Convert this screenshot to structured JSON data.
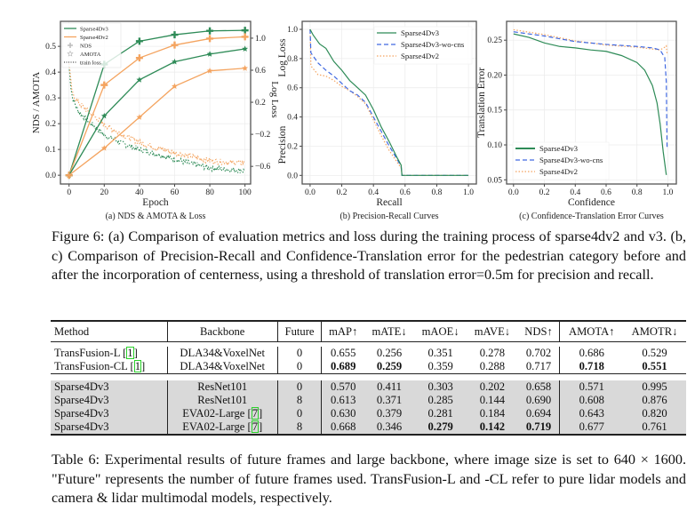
{
  "colors": {
    "v3": "#2e8b57",
    "v2": "#f4a460",
    "wocns": "#4169e1",
    "grid": "#e6e6e6"
  },
  "chart_data": [
    {
      "type": "line",
      "caption": "(a) NDS & AMOTA & Loss",
      "xlabel": "Epoch",
      "ylabel": "NDS / AMOTA",
      "y2label": "Log Loss",
      "xlim": [
        -4.9,
        103.2
      ],
      "ylim": [
        -0.034,
        0.597
      ],
      "y2lim": [
        -0.82,
        1.21
      ],
      "xticks": [
        0,
        20,
        40,
        60,
        80,
        100
      ],
      "yticks": [
        0.0,
        0.1,
        0.2,
        0.3,
        0.4,
        0.5
      ],
      "y2ticks": [
        -0.6,
        -0.2,
        0.2,
        0.6,
        1.0
      ],
      "grid": true,
      "legend": "top-left",
      "legend_entries": [
        "Sparse4Dv3",
        "Sparse4Dv2",
        "NDS",
        "AMOTA",
        "train loss"
      ],
      "x": [
        0,
        20,
        40,
        60,
        80,
        100
      ],
      "series": [
        {
          "name": "Sparse4Dv3",
          "metric": "NDS",
          "color": "v3",
          "marker": "plus",
          "values": [
            0,
            0.43,
            0.52,
            0.545,
            0.56,
            0.562
          ]
        },
        {
          "name": "Sparse4Dv2",
          "metric": "NDS",
          "color": "v2",
          "marker": "plus",
          "values": [
            0,
            0.35,
            0.455,
            0.505,
            0.53,
            0.537
          ]
        },
        {
          "name": "Sparse4Dv3",
          "metric": "AMOTA",
          "color": "v3",
          "marker": "star",
          "values": [
            0,
            0.23,
            0.37,
            0.44,
            0.47,
            0.49
          ]
        },
        {
          "name": "Sparse4Dv2",
          "metric": "AMOTA",
          "color": "v2",
          "marker": "star",
          "values": [
            0,
            0.105,
            0.225,
            0.345,
            0.405,
            0.415
          ]
        }
      ],
      "loss_x": [
        0,
        1,
        2,
        5,
        10,
        20,
        30,
        40,
        50,
        60,
        70,
        80,
        90,
        100
      ],
      "loss": [
        {
          "name": "Sparse4Dv3",
          "color": "v3",
          "values": [
            0.65,
            0.4,
            0.25,
            0.1,
            -0.02,
            -0.21,
            -0.31,
            -0.39,
            -0.45,
            -0.51,
            -0.57,
            -0.62,
            -0.64,
            -0.655
          ]
        },
        {
          "name": "Sparse4Dv2",
          "color": "v2",
          "values": [
            0.7,
            0.45,
            0.3,
            0.2,
            0.1,
            -0.08,
            -0.2,
            -0.3,
            -0.37,
            -0.43,
            -0.48,
            -0.53,
            -0.55,
            -0.555
          ]
        }
      ]
    },
    {
      "type": "line",
      "caption": "(b) Precision-Recall Curves",
      "xlabel": "Recall",
      "ylabel": "Log Loss",
      "ylabel2": "Precision",
      "xlim": [
        -0.05,
        1.05
      ],
      "ylim": [
        -0.059,
        1.055
      ],
      "xticks": [
        0.0,
        0.2,
        0.4,
        0.6,
        0.8,
        1.0
      ],
      "yticks": [
        0.0,
        0.2,
        0.4,
        0.6,
        0.8,
        1.0
      ],
      "grid": true,
      "legend": "top-right",
      "series": [
        {
          "name": "Sparse4Dv3",
          "color": "v3",
          "style": "solid",
          "points": [
            [
              0,
              1.0
            ],
            [
              0.02,
              0.96
            ],
            [
              0.06,
              0.9
            ],
            [
              0.1,
              0.87
            ],
            [
              0.15,
              0.78
            ],
            [
              0.2,
              0.72
            ],
            [
              0.25,
              0.65
            ],
            [
              0.3,
              0.6
            ],
            [
              0.35,
              0.55
            ],
            [
              0.4,
              0.45
            ],
            [
              0.45,
              0.33
            ],
            [
              0.5,
              0.23
            ],
            [
              0.55,
              0.12
            ],
            [
              0.575,
              0.07
            ],
            [
              0.58,
              0.0
            ],
            [
              1.0,
              0.0
            ]
          ]
        },
        {
          "name": "Sparse4Dv3-wo-cns",
          "color": "wocns",
          "style": "dashed",
          "points": [
            [
              0,
              1.0
            ],
            [
              0.005,
              0.84
            ],
            [
              0.05,
              0.77
            ],
            [
              0.1,
              0.72
            ],
            [
              0.15,
              0.68
            ],
            [
              0.2,
              0.63
            ],
            [
              0.25,
              0.58
            ],
            [
              0.3,
              0.55
            ],
            [
              0.35,
              0.5
            ],
            [
              0.4,
              0.4
            ],
            [
              0.45,
              0.3
            ],
            [
              0.5,
              0.2
            ],
            [
              0.55,
              0.11
            ],
            [
              0.575,
              0.06
            ],
            [
              0.58,
              0.0
            ],
            [
              1.0,
              0.0
            ]
          ]
        },
        {
          "name": "Sparse4Dv2",
          "color": "v2",
          "style": "dotted",
          "points": [
            [
              0,
              1.0
            ],
            [
              0.005,
              0.75
            ],
            [
              0.05,
              0.69
            ],
            [
              0.1,
              0.68
            ],
            [
              0.15,
              0.65
            ],
            [
              0.2,
              0.61
            ],
            [
              0.25,
              0.58
            ],
            [
              0.3,
              0.54
            ],
            [
              0.35,
              0.49
            ],
            [
              0.4,
              0.38
            ],
            [
              0.45,
              0.27
            ],
            [
              0.5,
              0.17
            ],
            [
              0.55,
              0.09
            ],
            [
              0.575,
              0.05
            ],
            [
              0.58,
              0.0
            ],
            [
              1.0,
              0.0
            ]
          ]
        }
      ]
    },
    {
      "type": "line",
      "caption": "(c) Confidence-Translation Error Curves",
      "xlabel": "Confidence",
      "ylabel": "Translation Error",
      "xlim": [
        -0.045,
        1.055
      ],
      "ylim": [
        0.044,
        0.277
      ],
      "xticks": [
        0.0,
        0.2,
        0.4,
        0.6,
        0.8,
        1.0
      ],
      "yticks": [
        0.05,
        0.1,
        0.15,
        0.2,
        0.25
      ],
      "grid": true,
      "legend": "bottom-left",
      "series": [
        {
          "name": "Sparse4Dv3",
          "color": "v3",
          "style": "solid",
          "points": [
            [
              0,
              0.259
            ],
            [
              0.1,
              0.254
            ],
            [
              0.2,
              0.246
            ],
            [
              0.3,
              0.241
            ],
            [
              0.4,
              0.239
            ],
            [
              0.5,
              0.236
            ],
            [
              0.6,
              0.234
            ],
            [
              0.7,
              0.228
            ],
            [
              0.8,
              0.218
            ],
            [
              0.85,
              0.207
            ],
            [
              0.9,
              0.185
            ],
            [
              0.93,
              0.16
            ],
            [
              0.95,
              0.13
            ],
            [
              0.97,
              0.09
            ],
            [
              0.99,
              0.057
            ]
          ]
        },
        {
          "name": "Sparse4Dv3-wo-cns",
          "color": "wocns",
          "style": "dashed",
          "points": [
            [
              0,
              0.262
            ],
            [
              0.2,
              0.256
            ],
            [
              0.4,
              0.248
            ],
            [
              0.6,
              0.244
            ],
            [
              0.8,
              0.241
            ],
            [
              0.9,
              0.239
            ],
            [
              0.95,
              0.236
            ],
            [
              0.98,
              0.225
            ],
            [
              0.99,
              0.19
            ],
            [
              0.995,
              0.095
            ]
          ]
        },
        {
          "name": "Sparse4Dv2",
          "color": "v2",
          "style": "dotted",
          "points": [
            [
              0,
              0.265
            ],
            [
              0.2,
              0.258
            ],
            [
              0.4,
              0.249
            ],
            [
              0.6,
              0.243
            ],
            [
              0.8,
              0.24
            ],
            [
              0.95,
              0.236
            ],
            [
              0.98,
              0.24
            ],
            [
              0.99,
              0.242
            ],
            [
              0.995,
              0.23
            ]
          ]
        }
      ]
    }
  ],
  "figure_caption": "Figure 6: (a) Comparison of evaluation metrics and loss during the training process of sparse4dv2 and v3. (b, c) Comparison of Precision-Recall and Confidence-Translation error for the pedestrian category before and after the incorporation of centerness, using a threshold of translation error=0.5m for precision and recall.",
  "table": {
    "headers": [
      "Method",
      "Backbone",
      "Future",
      "mAP↑",
      "mATE↓",
      "mAOE↓",
      "mAVE↓",
      "NDS↑",
      "AMOTA↑",
      "AMOTR↓"
    ],
    "group1": [
      {
        "method": "TransFusion-L",
        "ref": "1",
        "backbone": "DLA34&VoxelNet",
        "bref": "",
        "cells": [
          "0",
          "0.655",
          "0.256",
          "0.351",
          "0.278",
          "0.702",
          "0.686",
          "0.529"
        ],
        "bold": []
      },
      {
        "method": "TransFusion-CL",
        "ref": "1",
        "backbone": "DLA34&VoxelNet",
        "bref": "",
        "cells": [
          "0",
          "0.689",
          "0.259",
          "0.359",
          "0.288",
          "0.717",
          "0.718",
          "0.551"
        ],
        "bold": [
          1,
          2,
          6,
          7
        ]
      }
    ],
    "group2": [
      {
        "method": "Sparse4Dv3",
        "ref": "",
        "backbone": "ResNet101",
        "bref": "",
        "cells": [
          "0",
          "0.570",
          "0.411",
          "0.303",
          "0.202",
          "0.658",
          "0.571",
          "0.995"
        ],
        "bold": []
      },
      {
        "method": "Sparse4Dv3",
        "ref": "",
        "backbone": "ResNet101",
        "bref": "",
        "cells": [
          "8",
          "0.613",
          "0.371",
          "0.285",
          "0.144",
          "0.690",
          "0.608",
          "0.876"
        ],
        "bold": []
      },
      {
        "method": "Sparse4Dv3",
        "ref": "",
        "backbone": "EVA02-Large",
        "bref": "7",
        "cells": [
          "0",
          "0.630",
          "0.379",
          "0.281",
          "0.184",
          "0.694",
          "0.643",
          "0.820"
        ],
        "bold": []
      },
      {
        "method": "Sparse4Dv3",
        "ref": "",
        "backbone": "EVA02-Large",
        "bref": "7",
        "cells": [
          "8",
          "0.668",
          "0.346",
          "0.279",
          "0.142",
          "0.719",
          "0.677",
          "0.761"
        ],
        "bold": [
          3,
          4,
          5
        ]
      }
    ]
  },
  "table_caption": "Table 6: Experimental results of future frames and large backbone, where image size is set to 640 × 1600. \"Future\" represents the number of future frames used. TransFusion-L and -CL refer to pure lidar models and camera & lidar multimodal models, respectively."
}
